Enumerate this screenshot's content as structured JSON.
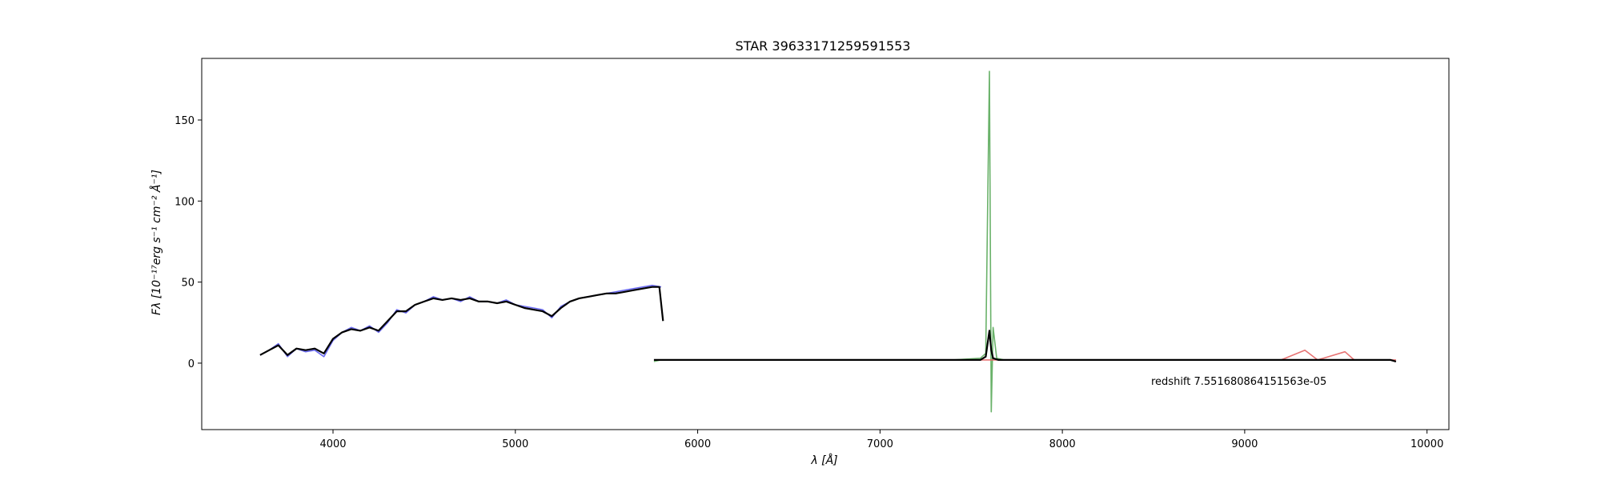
{
  "chart_data": {
    "type": "line",
    "title": "STAR 39633171259591553",
    "xlabel": "λ [Å]",
    "ylabel": "Fλ [10⁻¹⁷erg s⁻¹ cm⁻² Å⁻¹]",
    "annotation": "redshift 7.551680864151563e-05",
    "xlim": [
      3280,
      10120
    ],
    "ylim": [
      -41,
      188
    ],
    "xticks": [
      4000,
      5000,
      6000,
      7000,
      8000,
      9000,
      10000
    ],
    "yticks": [
      0,
      50,
      100,
      150
    ],
    "grid": false,
    "colors": {
      "b_arm": "#5b5bf0",
      "r_arm": "#5aaa5a",
      "z_arm": "#e46565",
      "model": "#000000",
      "axes": "#000000"
    },
    "series": [
      {
        "id": "b",
        "x": [
          3600,
          3650,
          3700,
          3750,
          3800,
          3850,
          3900,
          3950,
          4000,
          4050,
          4100,
          4150,
          4200,
          4250,
          4300,
          4350,
          4400,
          4450,
          4500,
          4550,
          4600,
          4650,
          4700,
          4750,
          4800,
          4850,
          4900,
          4950,
          5000,
          5050,
          5100,
          5150,
          5200,
          5250,
          5300,
          5350,
          5400,
          5450,
          5500,
          5550,
          5600,
          5650,
          5700,
          5750,
          5800
        ],
        "values": [
          5,
          8,
          12,
          4,
          9,
          7,
          8,
          4,
          14,
          19,
          22,
          20,
          23,
          19,
          25,
          33,
          31,
          36,
          38,
          41,
          39,
          40,
          38,
          41,
          38,
          38,
          37,
          39,
          36,
          35,
          34,
          33,
          28,
          35,
          38,
          40,
          41,
          42,
          43,
          44,
          45,
          46,
          47,
          48,
          47
        ]
      },
      {
        "id": "r",
        "x": [
          5760,
          5800,
          6000,
          6200,
          6400,
          6600,
          6800,
          7000,
          7200,
          7400,
          7550,
          7580,
          7600,
          7610,
          7620,
          7640,
          7680,
          7700
        ],
        "values": [
          1,
          2,
          2,
          2,
          2,
          2,
          2,
          2,
          2,
          2,
          3,
          6,
          180,
          -30,
          22,
          3,
          2,
          2
        ]
      },
      {
        "id": "z",
        "x": [
          7520,
          7600,
          7800,
          8000,
          8200,
          8400,
          8600,
          8800,
          9000,
          9200,
          9330,
          9400,
          9550,
          9600,
          9800,
          9830
        ],
        "values": [
          2,
          2,
          2,
          2,
          2,
          2,
          2,
          2,
          2,
          2,
          8,
          2,
          7,
          2,
          2,
          2
        ]
      },
      {
        "id": "model",
        "x": [
          3600,
          3650,
          3700,
          3750,
          3800,
          3850,
          3900,
          3950,
          4000,
          4050,
          4100,
          4150,
          4200,
          4250,
          4300,
          4350,
          4400,
          4450,
          4500,
          4550,
          4600,
          4650,
          4700,
          4750,
          4800,
          4850,
          4900,
          4950,
          5000,
          5050,
          5100,
          5150,
          5200,
          5250,
          5300,
          5350,
          5400,
          5450,
          5500,
          5550,
          5600,
          5650,
          5700,
          5750,
          5790,
          5810
        ],
        "values": [
          5,
          8,
          11,
          5,
          9,
          8,
          9,
          6,
          15,
          19,
          21,
          20,
          22,
          20,
          26,
          32,
          32,
          36,
          38,
          40,
          39,
          40,
          39,
          40,
          38,
          38,
          37,
          38,
          36,
          34,
          33,
          32,
          29,
          34,
          38,
          40,
          41,
          42,
          43,
          43,
          44,
          45,
          46,
          47,
          47,
          26
        ]
      },
      {
        "id": "model_red",
        "x": [
          5760,
          6000,
          6500,
          7000,
          7400,
          7550,
          7580,
          7600,
          7610,
          7620,
          7650,
          7700,
          8000,
          8500,
          9000,
          9500,
          9800,
          9830
        ],
        "values": [
          2,
          2,
          2,
          2,
          2,
          2,
          4,
          20,
          8,
          3,
          2,
          2,
          2,
          2,
          2,
          2,
          2,
          1
        ]
      }
    ]
  }
}
